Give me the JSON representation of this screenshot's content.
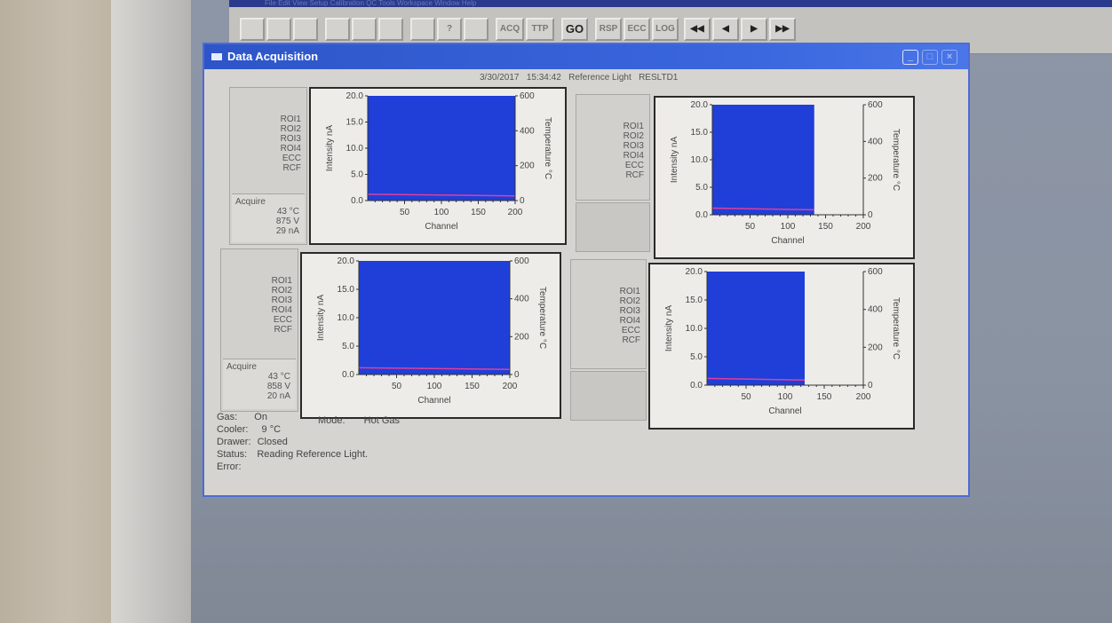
{
  "menu_text": "File   Edit   View   Setup   Calibration   QC   Tools   Workspace   Window   Help",
  "toolbar": {
    "buttons": [
      "",
      "",
      "",
      "",
      "",
      "",
      "",
      "?",
      "",
      "ACQ",
      "TTP",
      "GO",
      "RSP",
      "ECC",
      "LOG",
      "◀◀",
      "◀",
      "▶",
      "▶▶"
    ]
  },
  "window": {
    "title": "Data Acquisition",
    "date": "3/30/2017",
    "time": "15:34:42",
    "mode_label": "Reference Light",
    "file": "RESLTD1"
  },
  "panels": [
    {
      "labels": [
        "ROI1",
        "ROI2",
        "ROI3",
        "ROI4",
        "ECC",
        "RCF"
      ],
      "acquire": {
        "title": "Acquire",
        "temp": "43 °C",
        "volt": "875 V",
        "current": "29 nA"
      }
    },
    {
      "labels": [
        "ROI1",
        "ROI2",
        "ROI3",
        "ROI4",
        "ECC",
        "RCF"
      ]
    },
    {
      "labels": [
        "ROI1",
        "ROI2",
        "ROI3",
        "ROI4",
        "ECC",
        "RCF"
      ],
      "acquire": {
        "title": "Acquire",
        "temp": "43 °C",
        "volt": "858 V",
        "current": "20 nA"
      }
    },
    {
      "labels": [
        "ROI1",
        "ROI2",
        "ROI3",
        "ROI4",
        "ECC",
        "RCF"
      ]
    }
  ],
  "status": {
    "gas_label": "Gas:",
    "gas_value": "On",
    "mode_label": "Mode:",
    "mode_value": "Hot Gas",
    "cooler_label": "Cooler:",
    "cooler_value": "9 °C",
    "drawer_label": "Drawer:",
    "drawer_value": "Closed",
    "status_label": "Status:",
    "status_value": "Reading Reference Light.",
    "error_label": "Error:"
  },
  "chart_data": [
    {
      "type": "area",
      "xlabel": "Channel",
      "ylabel": "Intensity nA",
      "y2label": "Temperature °C",
      "xlim": [
        0,
        200
      ],
      "ylim": [
        0,
        20
      ],
      "y2lim": [
        0,
        600
      ],
      "xticks": [
        50,
        100,
        150,
        200
      ],
      "yticks": [
        "0.0",
        "5.0",
        "10.0",
        "15.0",
        "20.0"
      ],
      "y2ticks": [
        "0",
        "200",
        "400",
        "600"
      ],
      "fill_end_channel": 200,
      "fill_level": 20.0,
      "temperature_trace": [
        1.2,
        0.9
      ],
      "fill_color": "#1f3fd8",
      "trace_color": "#e0409a"
    },
    {
      "type": "area",
      "xlabel": "Channel",
      "ylabel": "Intensity nA",
      "y2label": "Temperature °C",
      "xlim": [
        0,
        200
      ],
      "ylim": [
        0,
        20
      ],
      "y2lim": [
        0,
        600
      ],
      "xticks": [
        50,
        100,
        150,
        200
      ],
      "yticks": [
        "0.0",
        "5.0",
        "10.0",
        "15.0",
        "20.0"
      ],
      "y2ticks": [
        "0",
        "200",
        "400",
        "600"
      ],
      "fill_end_channel": 135,
      "fill_level": 20.0,
      "temperature_trace": [
        1.2,
        0.9
      ],
      "fill_color": "#1f3fd8",
      "trace_color": "#e0409a"
    },
    {
      "type": "area",
      "xlabel": "Channel",
      "ylabel": "Intensity nA",
      "y2label": "Temperature °C",
      "xlim": [
        0,
        200
      ],
      "ylim": [
        0,
        20
      ],
      "y2lim": [
        0,
        600
      ],
      "xticks": [
        50,
        100,
        150,
        200
      ],
      "yticks": [
        "0.0",
        "5.0",
        "10.0",
        "15.0",
        "20.0"
      ],
      "y2ticks": [
        "0",
        "200",
        "400",
        "600"
      ],
      "fill_end_channel": 200,
      "fill_level": 20.0,
      "temperature_trace": [
        1.2,
        0.9
      ],
      "fill_color": "#1f3fd8",
      "trace_color": "#e0409a"
    },
    {
      "type": "area",
      "xlabel": "Channel",
      "ylabel": "Intensity nA",
      "y2label": "Temperature °C",
      "xlim": [
        0,
        200
      ],
      "ylim": [
        0,
        20
      ],
      "y2lim": [
        0,
        600
      ],
      "xticks": [
        50,
        100,
        150,
        200
      ],
      "yticks": [
        "0.0",
        "5.0",
        "10.0",
        "15.0",
        "20.0"
      ],
      "y2ticks": [
        "0",
        "200",
        "400",
        "600"
      ],
      "fill_end_channel": 125,
      "fill_level": 20.0,
      "temperature_trace": [
        1.2,
        0.9
      ],
      "fill_color": "#1f3fd8",
      "trace_color": "#e0409a"
    }
  ]
}
